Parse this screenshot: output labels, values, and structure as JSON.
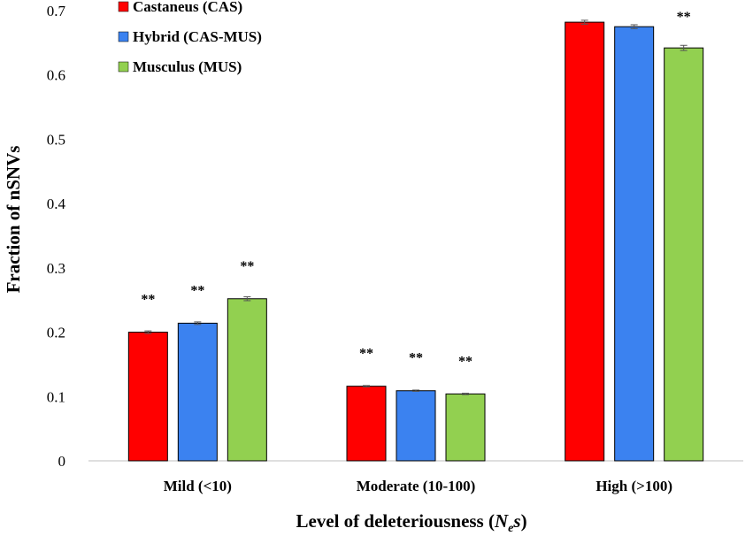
{
  "chart_data": {
    "type": "bar",
    "title": "",
    "xlabel_prefix": "Level of deleteriousness (",
    "xlabel_var": "N",
    "xlabel_sub": "e",
    "xlabel_var2": "s",
    "xlabel_suffix": ")",
    "ylabel": "Fraction of nSNVs",
    "ylim": [
      0,
      0.7
    ],
    "yticks": [
      "0",
      "0.1",
      "0.2",
      "0.3",
      "0.4",
      "0.5",
      "0.6",
      "0.7"
    ],
    "categories": [
      "Mild (<10)",
      "Moderate (10-100)",
      "High (>100)"
    ],
    "series": [
      {
        "name": "Castaneus (CAS)",
        "color": "#ff0000",
        "values": [
          0.2,
          0.116,
          0.682
        ],
        "errors": [
          0.002,
          0.001,
          0.003
        ],
        "sig": [
          "**",
          "**",
          ""
        ]
      },
      {
        "name": "Hybrid (CAS-MUS)",
        "color": "#3b82f0",
        "values": [
          0.214,
          0.109,
          0.675
        ],
        "errors": [
          0.002,
          0.001,
          0.003
        ],
        "sig": [
          "**",
          "**",
          ""
        ]
      },
      {
        "name": "Musculus (MUS)",
        "color": "#92d050",
        "values": [
          0.252,
          0.104,
          0.642
        ],
        "errors": [
          0.003,
          0.001,
          0.004
        ],
        "sig": [
          "**",
          "**",
          "**"
        ]
      }
    ],
    "legend_position": "top-left"
  }
}
